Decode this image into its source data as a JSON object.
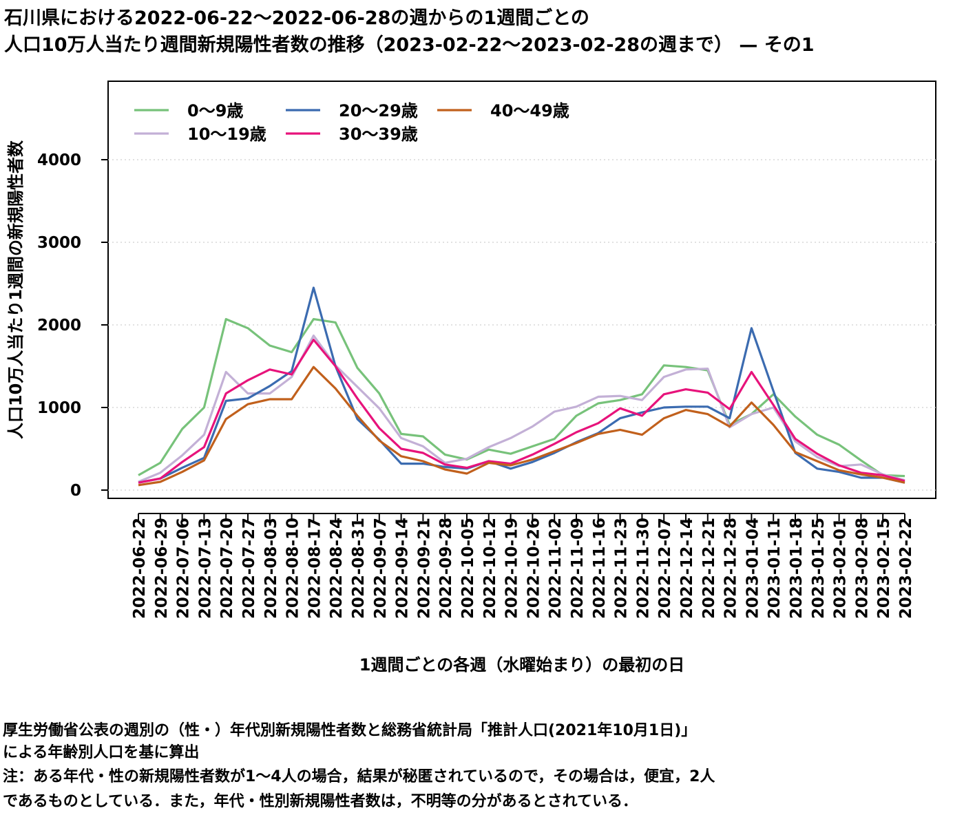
{
  "title_line1": "石川県における2022-06-22〜2022-06-28の週からの1週間ごとの",
  "title_line2": "人口10万人当たり週間新規陽性者数の推移（2023-02-22〜2023-02-28の週まで） — その1",
  "notes": {
    "line1": "厚生労働省公表の週別の（性・）年代別新規陽性者数と総務省統計局「推計人口(2021年10月1日)」",
    "line2": "による年齢別人口を基に算出",
    "line3": "注：ある年代・性の新規陽性者数が1〜4人の場合，結果が秘匿されているので，その場合は，便宜，2人",
    "line4": "であるものとしている．また，年代・性別新規陽性者数は，不明等の分があるとされている．"
  },
  "chart_data": {
    "type": "line",
    "xlabel": "1週間ごとの各週（水曜始まり）の最初の日",
    "ylabel": "人口10万人当たり1週間の新規陽性者数",
    "ylim": [
      -100,
      4950
    ],
    "yticks": [
      0,
      1000,
      2000,
      3000,
      4000
    ],
    "grid": "horizontal dotted",
    "legend_position": "top-left",
    "categories": [
      "2022-06-22",
      "2022-06-29",
      "2022-07-06",
      "2022-07-13",
      "2022-07-20",
      "2022-07-27",
      "2022-08-03",
      "2022-08-10",
      "2022-08-17",
      "2022-08-24",
      "2022-08-31",
      "2022-09-07",
      "2022-09-14",
      "2022-09-21",
      "2022-09-28",
      "2022-10-05",
      "2022-10-12",
      "2022-10-19",
      "2022-10-26",
      "2022-11-02",
      "2022-11-09",
      "2022-11-16",
      "2022-11-23",
      "2022-11-30",
      "2022-12-07",
      "2022-12-14",
      "2022-12-21",
      "2022-12-28",
      "2023-01-04",
      "2023-01-11",
      "2023-01-18",
      "2023-01-25",
      "2023-02-01",
      "2023-02-08",
      "2023-02-15",
      "2023-02-22"
    ],
    "series": [
      {
        "name": "0〜9歳",
        "color": "#77c27a",
        "values": [
          180,
          330,
          740,
          1000,
          2070,
          1960,
          1750,
          1670,
          2070,
          2030,
          1480,
          1170,
          680,
          650,
          430,
          370,
          490,
          440,
          530,
          620,
          900,
          1050,
          1090,
          1160,
          1510,
          1490,
          1450,
          790,
          920,
          1160,
          890,
          670,
          550,
          360,
          180,
          170
        ]
      },
      {
        "name": "10〜19歳",
        "color": "#c3b0d6",
        "values": [
          100,
          210,
          420,
          670,
          1430,
          1170,
          1170,
          1370,
          1870,
          1510,
          1250,
          990,
          630,
          530,
          330,
          380,
          520,
          630,
          770,
          950,
          1010,
          1130,
          1140,
          1090,
          1370,
          1460,
          1470,
          760,
          920,
          1000,
          590,
          400,
          290,
          310,
          190,
          120
        ]
      },
      {
        "name": "20〜29歳",
        "color": "#3b6bb0",
        "values": [
          90,
          140,
          270,
          390,
          1080,
          1110,
          1260,
          1440,
          2450,
          1500,
          860,
          610,
          320,
          320,
          280,
          260,
          350,
          260,
          340,
          450,
          580,
          690,
          870,
          940,
          1000,
          1010,
          1010,
          870,
          1960,
          1200,
          450,
          260,
          220,
          150,
          150,
          90
        ]
      },
      {
        "name": "30〜39歳",
        "color": "#e7137b",
        "values": [
          90,
          140,
          340,
          520,
          1170,
          1330,
          1460,
          1400,
          1820,
          1500,
          1110,
          750,
          500,
          450,
          310,
          270,
          350,
          320,
          430,
          560,
          700,
          810,
          990,
          900,
          1160,
          1220,
          1180,
          980,
          1430,
          1030,
          620,
          440,
          300,
          210,
          180,
          110
        ]
      },
      {
        "name": "40〜49歳",
        "color": "#c1601c",
        "values": [
          60,
          100,
          220,
          360,
          860,
          1040,
          1100,
          1100,
          1490,
          1230,
          900,
          600,
          410,
          350,
          250,
          200,
          330,
          300,
          370,
          470,
          570,
          680,
          730,
          670,
          870,
          970,
          920,
          770,
          1060,
          790,
          460,
          350,
          240,
          190,
          150,
          90
        ]
      }
    ]
  }
}
